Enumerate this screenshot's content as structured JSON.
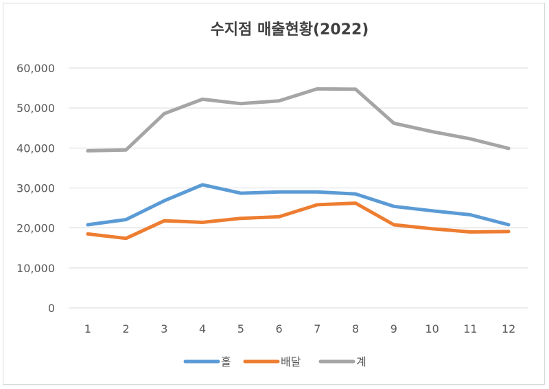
{
  "chart_data": {
    "type": "line",
    "title": "수지점 매출현황(2022)",
    "categories": [
      "1",
      "2",
      "3",
      "4",
      "5",
      "6",
      "7",
      "8",
      "9",
      "10",
      "11",
      "12"
    ],
    "ylim": [
      0,
      60000
    ],
    "yticks": [
      "0",
      "10,000",
      "20,000",
      "30,000",
      "40,000",
      "50,000",
      "60,000"
    ],
    "ytick_values": [
      0,
      10000,
      20000,
      30000,
      40000,
      50000,
      60000
    ],
    "grid": true,
    "legend_position": "bottom",
    "series": [
      {
        "name": "홀",
        "color": "#5b9bd5",
        "values": [
          20800,
          22100,
          26800,
          30800,
          28700,
          29000,
          29000,
          28500,
          25400,
          24300,
          23300,
          20800
        ]
      },
      {
        "name": "배달",
        "color": "#ed7d31",
        "values": [
          18500,
          17400,
          21800,
          21400,
          22400,
          22800,
          25800,
          26200,
          20800,
          19800,
          19000,
          19100
        ]
      },
      {
        "name": "계",
        "color": "#a5a5a5",
        "values": [
          39300,
          39500,
          48600,
          52200,
          51100,
          51800,
          54800,
          54700,
          46200,
          44100,
          42300,
          39900
        ]
      }
    ]
  }
}
